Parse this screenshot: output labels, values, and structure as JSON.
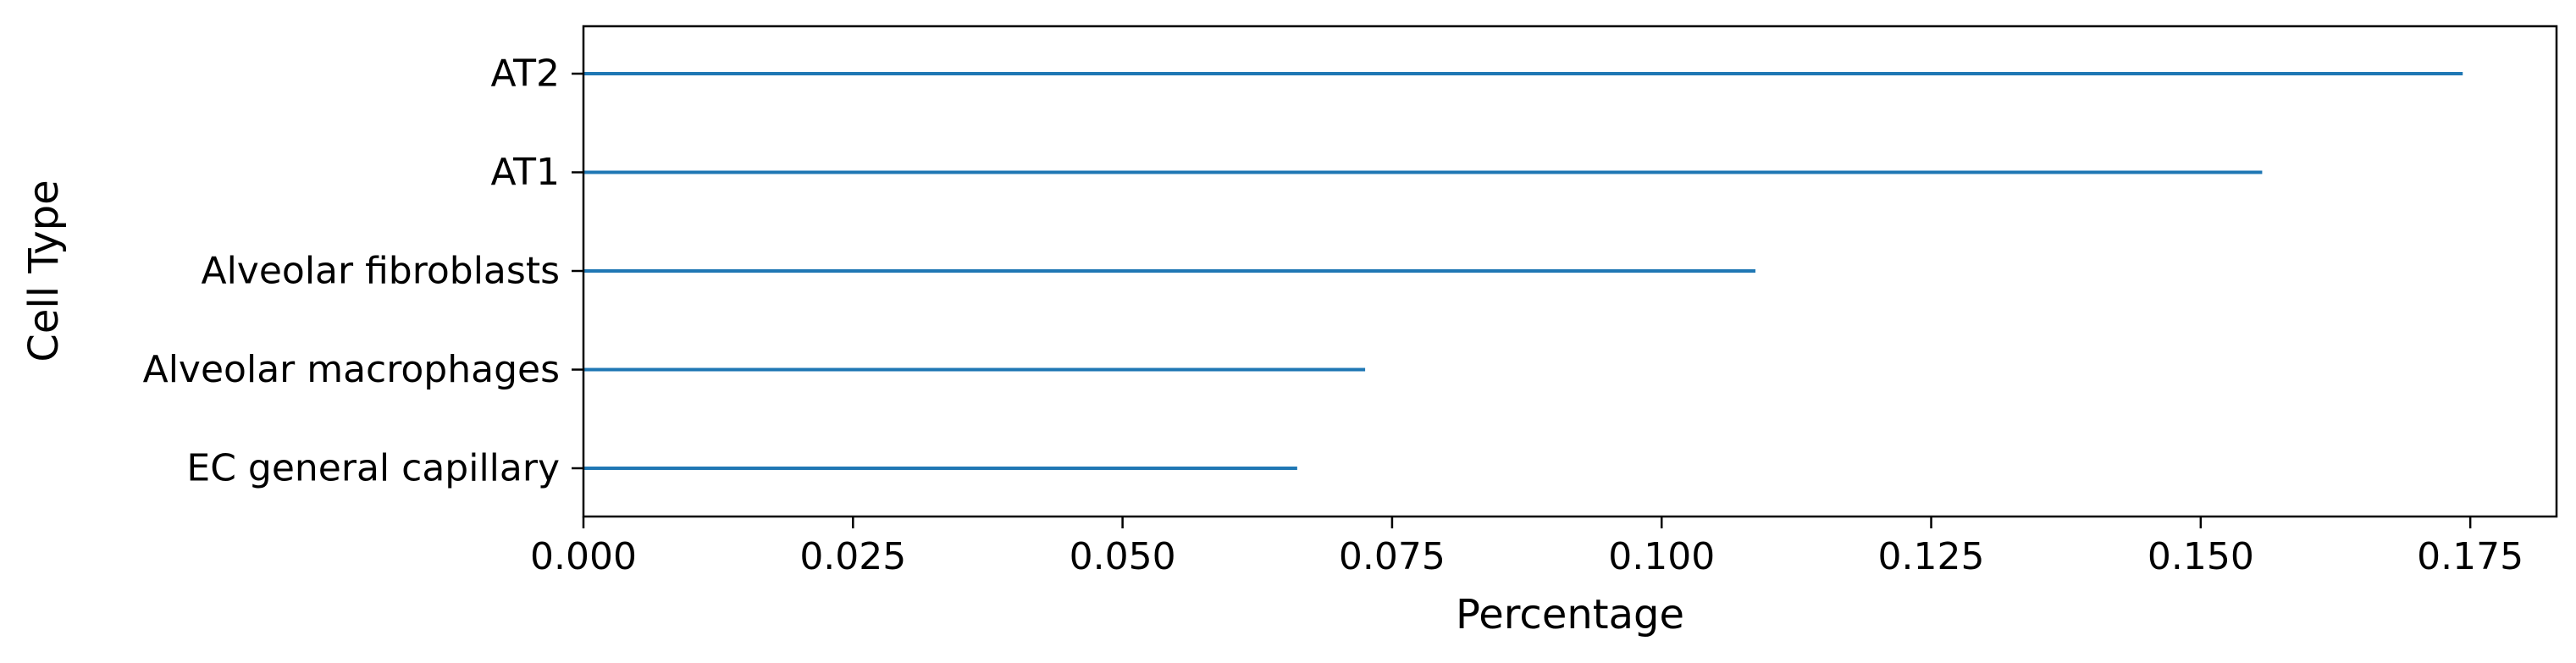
{
  "chart_data": {
    "type": "bar",
    "orientation": "horizontal",
    "categories": [
      "AT2",
      "AT1",
      "Alveolar fibroblasts",
      "Alveolar macrophages",
      "EC general capillary"
    ],
    "values": [
      0.1743,
      0.1557,
      0.1087,
      0.0725,
      0.0662
    ],
    "xlabel": "Percentage",
    "ylabel": "Cell Type",
    "xlim": [
      0.0,
      0.183
    ],
    "xticks": [
      0.0,
      0.025,
      0.05,
      0.075,
      0.1,
      0.125,
      0.15,
      0.175
    ],
    "xtick_labels": [
      "0.000",
      "0.025",
      "0.050",
      "0.075",
      "0.100",
      "0.125",
      "0.150",
      "0.175"
    ],
    "grid": false,
    "bar_color": "#1f77b4"
  }
}
